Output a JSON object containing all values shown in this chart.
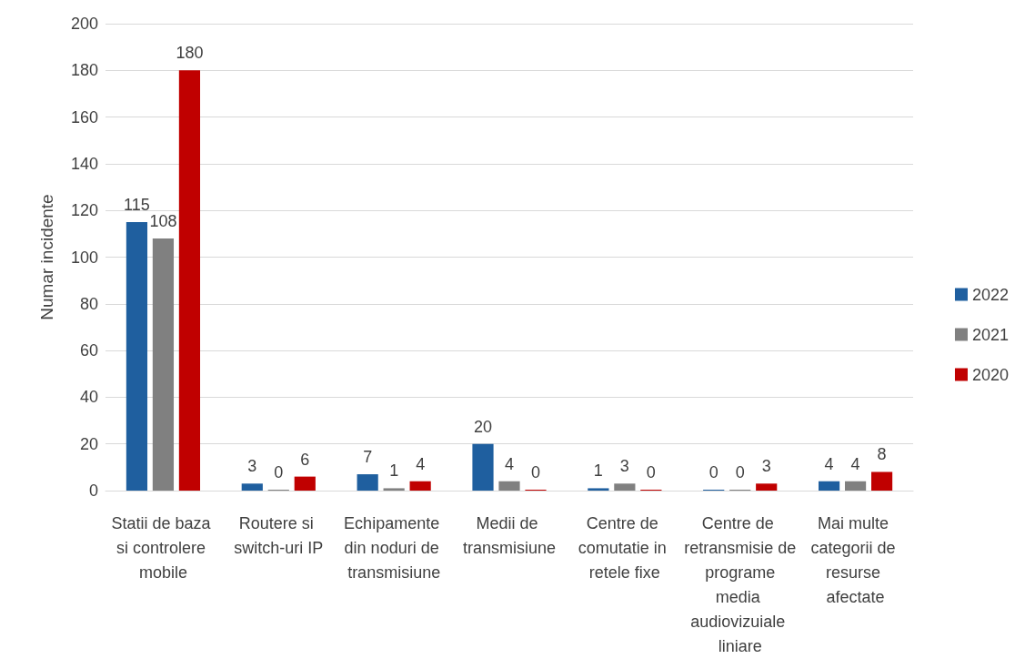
{
  "chart_data": {
    "type": "bar",
    "ylabel": "Numar incidente",
    "categories": [
      "Statii de baza si controlere mobile",
      "Routere si switch-uri IP",
      "Echipamente din noduri de transmisiune",
      "Medii de transmisiune",
      "Centre de comutatie in retele fixe",
      "Centre de retransmisie de programe media audiovizuiale liniare",
      "Mai multe categorii de resurse afectate"
    ],
    "series": [
      {
        "name": "2022",
        "color": "#1f5f9f",
        "values": [
          115,
          3,
          7,
          20,
          1,
          0,
          4
        ]
      },
      {
        "name": "2021",
        "color": "#808080",
        "values": [
          108,
          0,
          1,
          4,
          3,
          0,
          4
        ]
      },
      {
        "name": "2020",
        "color": "#c00000",
        "values": [
          180,
          6,
          4,
          0,
          0,
          3,
          8
        ]
      }
    ],
    "ylim": [
      0,
      200
    ],
    "yticks": [
      0,
      20,
      40,
      60,
      80,
      100,
      120,
      140,
      160,
      180,
      200
    ],
    "grid": "y",
    "legend": "right",
    "data_labels": true
  }
}
